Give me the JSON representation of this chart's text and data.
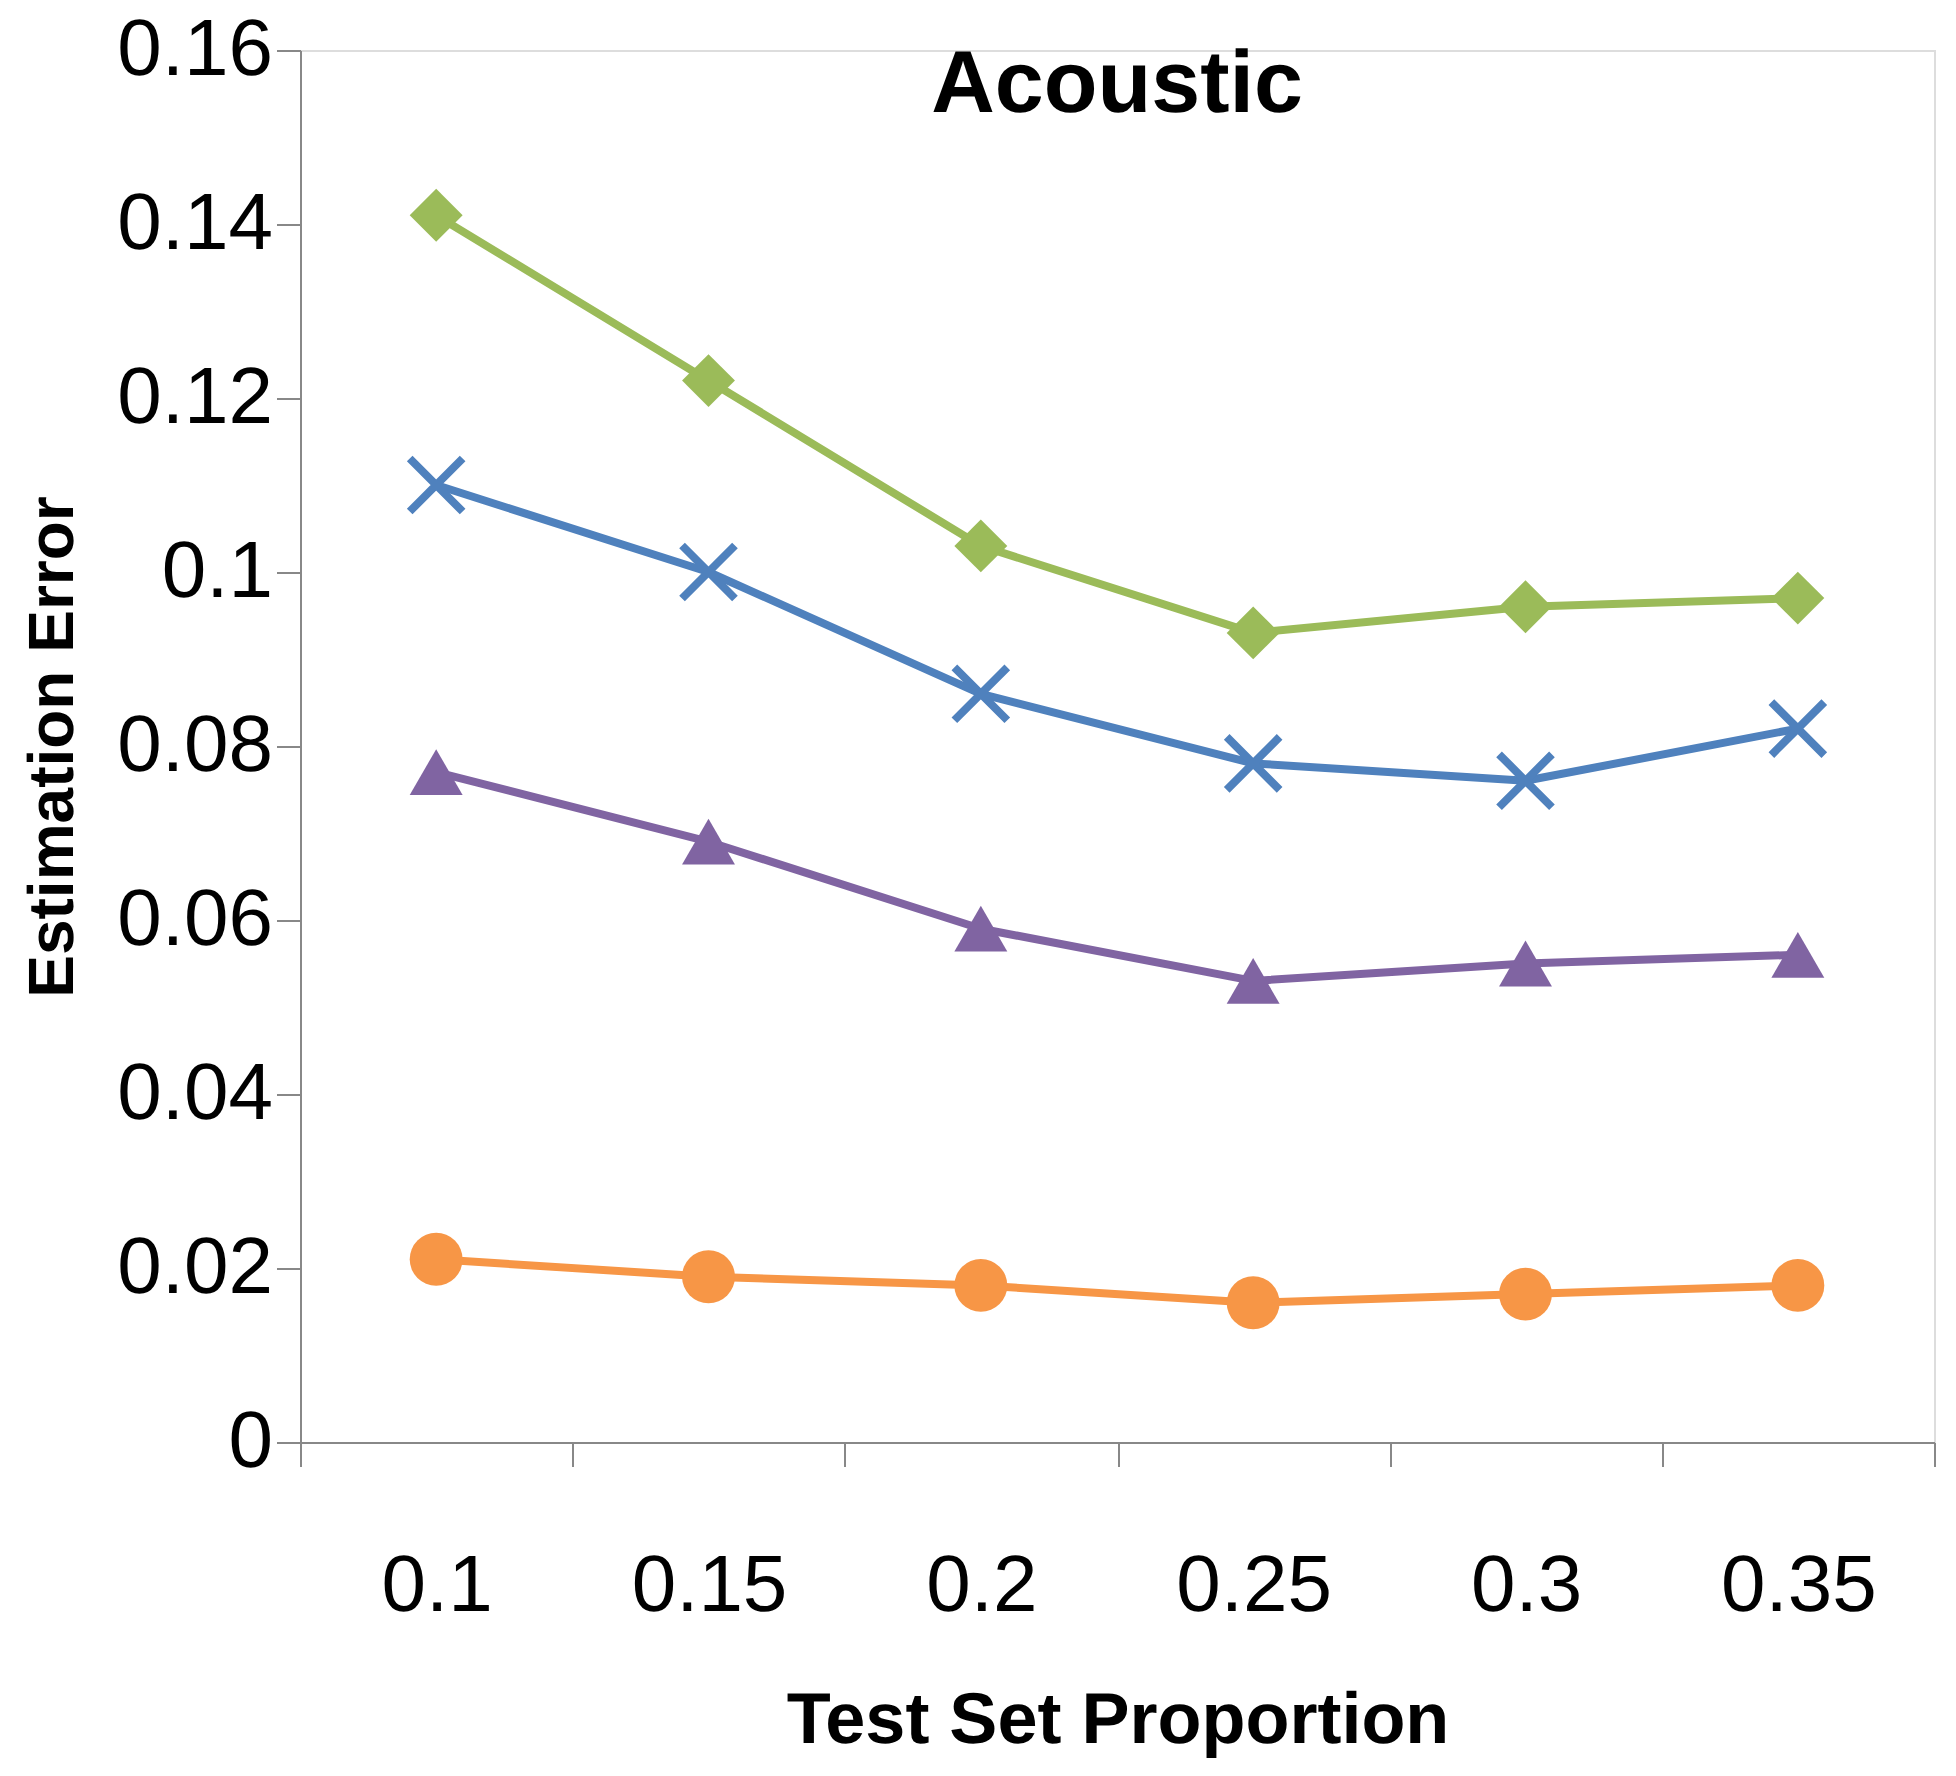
{
  "chart_data": {
    "type": "line",
    "title": "Acoustic",
    "xlabel": "Test Set Proportion",
    "ylabel": "Estimation Error",
    "categories": [
      "0.1",
      "0.15",
      "0.2",
      "0.25",
      "0.3",
      "0.35"
    ],
    "ylim": [
      0,
      0.16
    ],
    "yticks": [
      0,
      0.02,
      0.04,
      0.06,
      0.08,
      0.1,
      0.12,
      0.14,
      0.16
    ],
    "grid": false,
    "line_style": "solid",
    "series": [
      {
        "color": "#9bbb59",
        "marker": "diamond",
        "values": [
          0.141,
          0.122,
          0.103,
          0.093,
          0.096,
          0.097
        ]
      },
      {
        "color": "#4f81bd",
        "marker": "cross",
        "values": [
          0.11,
          0.1,
          0.086,
          0.078,
          0.076,
          0.082
        ]
      },
      {
        "color": "#8064a2",
        "marker": "triangle",
        "values": [
          0.077,
          0.069,
          0.059,
          0.053,
          0.055,
          0.056
        ]
      },
      {
        "color": "#f79646",
        "marker": "circle",
        "values": [
          0.021,
          0.019,
          0.018,
          0.016,
          0.017,
          0.018
        ]
      }
    ]
  }
}
